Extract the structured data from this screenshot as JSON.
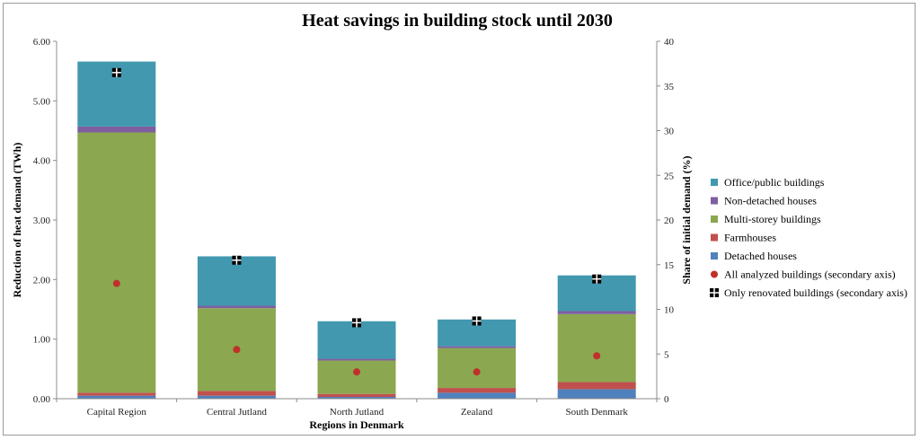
{
  "chart_data": {
    "type": "bar",
    "stacked": true,
    "title": "Heat savings in building stock until 2030",
    "xlabel": "Regions in Denmark",
    "ylabel": "Reduction of heat demand (TWh)",
    "y2label": "Share of initial  demand (%)",
    "ylim": [
      0,
      6
    ],
    "y2lim": [
      0,
      40
    ],
    "yticks": [
      "0.00",
      "1.00",
      "2.00",
      "3.00",
      "4.00",
      "5.00",
      "6.00"
    ],
    "y2ticks": [
      "0",
      "5",
      "10",
      "15",
      "20",
      "25",
      "30",
      "35",
      "40"
    ],
    "categories": [
      "Capital Region",
      "Central Jutland",
      "North Jutland",
      "Zealand",
      "South Denmark"
    ],
    "series": [
      {
        "name": "Detached houses",
        "color": "#4F81BD",
        "values": [
          0.05,
          0.05,
          0.03,
          0.1,
          0.16
        ]
      },
      {
        "name": "Farmhouses",
        "color": "#C0504D",
        "values": [
          0.05,
          0.08,
          0.05,
          0.08,
          0.12
        ]
      },
      {
        "name": "Multi-storey buildings",
        "color": "#8BA750",
        "values": [
          4.37,
          1.39,
          0.56,
          0.67,
          1.14
        ]
      },
      {
        "name": "Non-detached houses",
        "color": "#7E5FA0",
        "values": [
          0.1,
          0.04,
          0.03,
          0.03,
          0.05
        ]
      },
      {
        "name": "Office/public buildings",
        "color": "#4198AF",
        "values": [
          1.09,
          0.83,
          0.63,
          0.45,
          0.6
        ]
      }
    ],
    "markers": [
      {
        "name": "All analyzed buildings (secondary axis)",
        "color": "#C0302A",
        "shape": "circle",
        "values": [
          12.9,
          5.5,
          3.0,
          3.0,
          4.8
        ]
      },
      {
        "name": "Only renovated buildings (secondary axis)",
        "color": "#000000",
        "shape": "square-cross",
        "values": [
          36.5,
          15.5,
          8.5,
          8.7,
          13.4
        ]
      }
    ],
    "legend_order": [
      "Office/public buildings",
      "Non-detached houses",
      "Multi-storey buildings",
      "Farmhouses",
      "Detached houses",
      "All analyzed buildings (secondary axis)",
      "Only renovated buildings (secondary axis)"
    ],
    "legend_position": "right",
    "grid": false
  }
}
